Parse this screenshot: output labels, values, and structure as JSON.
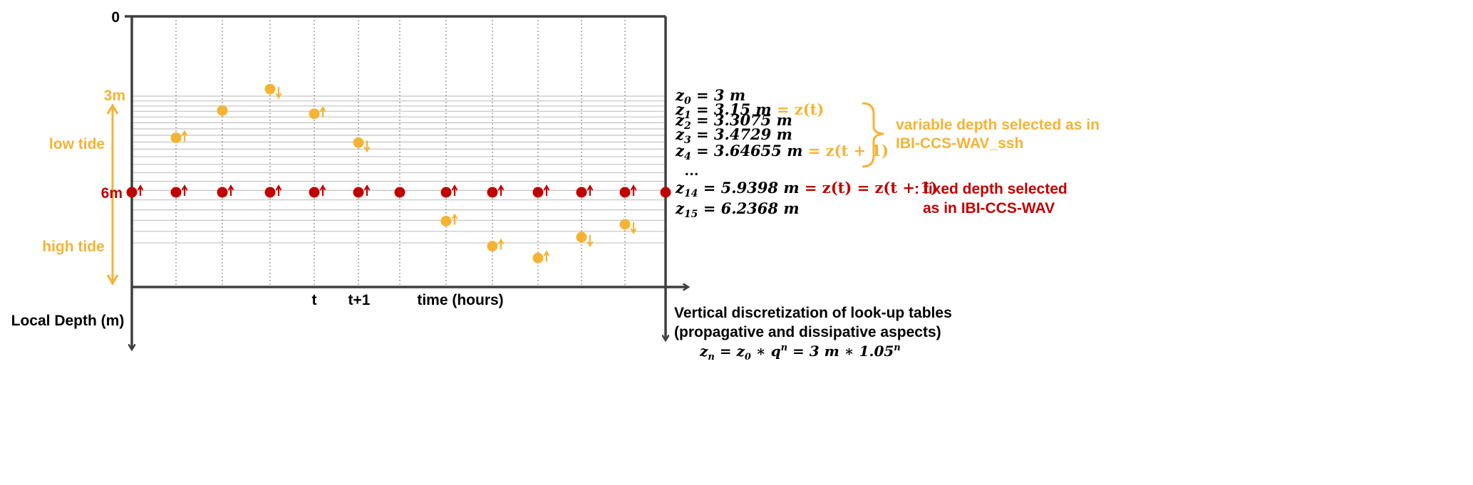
{
  "colors": {
    "orange": "#F5B335",
    "red": "#C00000",
    "grid": "#C8C8C8",
    "axis": "#3F3F3F",
    "text": "#000000"
  },
  "axis": {
    "y_zero_label": "0",
    "y_3m_label": "3m",
    "y_6m_label": "6m",
    "low_tide_label": "low tide",
    "high_tide_label": "high tide",
    "y_title": "Local Depth (m)",
    "x_t_label": "t",
    "x_t1_label": "t+1",
    "x_title": "time (hours)"
  },
  "depth_levels": {
    "z0": "3 m",
    "z1": "3.15 m",
    "z1_suffix": "= z(t)",
    "z2": "3.3075 m",
    "z3": "3.4729 m",
    "z4": "3.64655 m",
    "z4_suffix": "= z(t + 1)",
    "ellipsis": "…",
    "z14": "5.9398 m",
    "z14_suffix": "= z(t) = z(t + 1)",
    "z15": "6.2368 m"
  },
  "annotations": {
    "variable_line1": "variable depth selected as in",
    "variable_line2": "IBI-CCS-WAV_ssh",
    "fixed_prefix": ": fixed depth selected",
    "fixed_line2": "as in IBI-CCS-WAV",
    "caption_line1": "Vertical discretization of look-up tables",
    "caption_line2": "(propagative and dissipative aspects)",
    "formula": "z_n = z_0 * q^n = 3 m * 1.05^n"
  },
  "chart_data": {
    "type": "scatter",
    "xlabel": "time (hours)",
    "ylabel": "Local Depth (m)",
    "x_tick_labels": [
      "t",
      "t+1"
    ],
    "y_tick_labels": [
      "0",
      "3m",
      "6m"
    ],
    "grid": true,
    "depth_grid_levels": [
      3,
      3.15,
      3.3075,
      3.4729,
      3.64655,
      3.8288,
      4.0203,
      4.2213,
      4.4324,
      4.654,
      4.8867,
      5.131,
      5.3876,
      5.657,
      5.9398,
      6.2368,
      6.5487,
      6.8761,
      7.2199,
      7.5809
    ],
    "series": [
      {
        "name": "variable depth selected as in IBI-CCS-WAV_ssh",
        "color": "#F5B335",
        "x": [
          1,
          2,
          3,
          4,
          5,
          7,
          8,
          9,
          10,
          11
        ],
        "y": [
          4.3,
          3.45,
          2.78,
          3.55,
          4.45,
          6.9,
          7.68,
          8.05,
          7.4,
          7.0
        ],
        "arrows": [
          "up",
          "none",
          "down",
          "up",
          "down",
          "up",
          "up",
          "up",
          "down",
          "down"
        ]
      },
      {
        "name": "fixed depth selected as in IBI-CCS-WAV",
        "color": "#C00000",
        "x": [
          0,
          1,
          2,
          3,
          4,
          5,
          6,
          7,
          8,
          9,
          10,
          11,
          12
        ],
        "y": [
          6,
          6,
          6,
          6,
          6,
          6,
          6,
          6,
          6,
          6,
          6,
          6,
          6
        ],
        "arrows": [
          "up",
          "up",
          "up",
          "up",
          "up",
          "up",
          "none",
          "up",
          "up",
          "up",
          "up",
          "up",
          "none"
        ]
      }
    ]
  }
}
